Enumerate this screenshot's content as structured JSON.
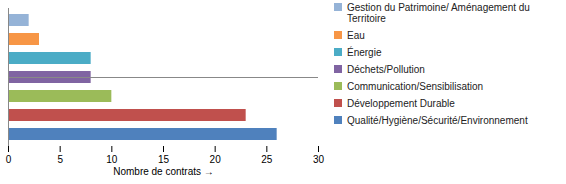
{
  "chart_data": {
    "type": "bar",
    "orientation": "horizontal",
    "categories": [
      "Gestion du Patrimoine/ Aménagement du Territoire",
      "Eau",
      "Énergie",
      "Déchets/Pollution",
      "Communication/Sensibilisation",
      "Développement Durable",
      "Qualité/Hygiène/Sécurité/Environnement"
    ],
    "values": [
      2,
      3,
      8,
      8,
      10,
      23,
      26
    ],
    "colors": [
      "#95b3d7",
      "#f79646",
      "#4bacc6",
      "#8064a2",
      "#9bbb59",
      "#c0504d",
      "#4f81bd"
    ],
    "xlabel": "Nombre de contrats",
    "xlim": [
      0,
      30
    ],
    "xticks": [
      0,
      5,
      10,
      15,
      20,
      25,
      30
    ],
    "grid": false,
    "legend": "right",
    "tick_labels": "x"
  }
}
